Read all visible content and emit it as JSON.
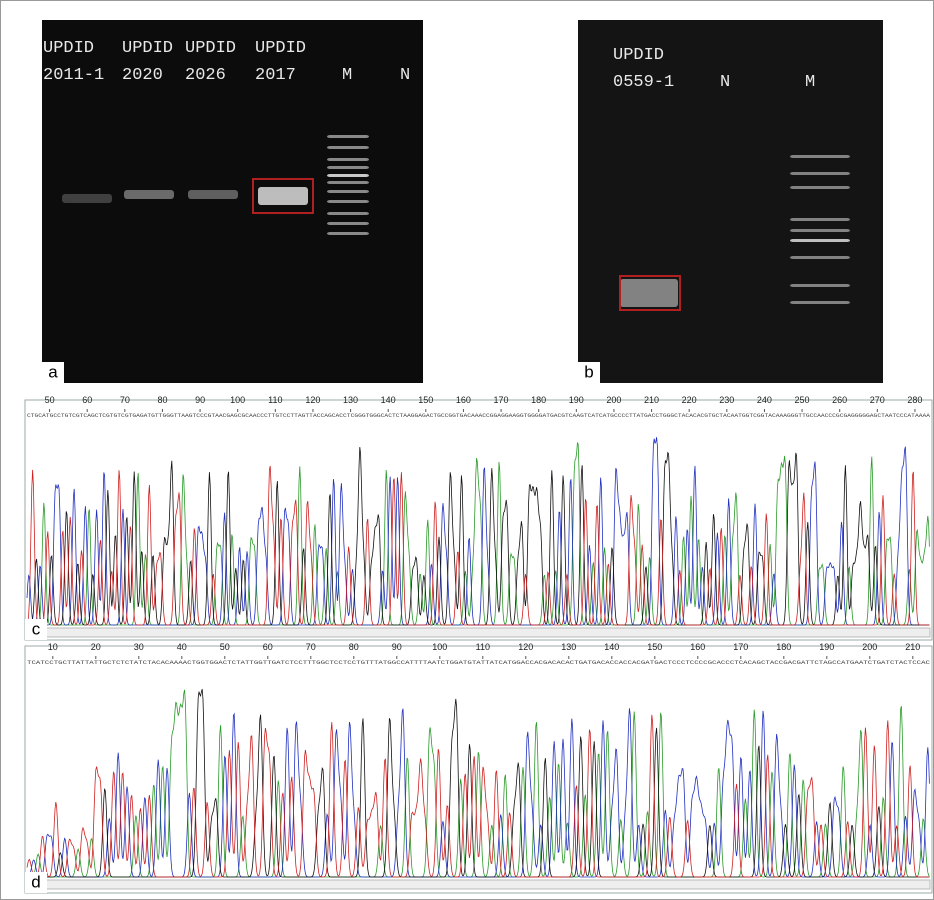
{
  "panels": [
    {
      "label": "a",
      "lanes": [
        [
          "UPDID",
          "2011-1"
        ],
        [
          "UPDID",
          "2020"
        ],
        [
          "UPDID",
          "2026"
        ],
        [
          "UPDID",
          "2017"
        ],
        [
          "M"
        ],
        [
          "N"
        ]
      ]
    },
    {
      "label": "b",
      "lanes": [
        [
          "UPDID",
          "0559-1"
        ],
        [
          "N"
        ],
        [
          "M"
        ]
      ]
    },
    {
      "label": "c",
      "ruler": [
        "50",
        "60",
        "70",
        "80",
        "90",
        "100",
        "110",
        "120",
        "130",
        "140",
        "150",
        "160",
        "170",
        "180",
        "190",
        "200",
        "210",
        "220",
        "230",
        "240",
        "250",
        "260",
        "270",
        "280"
      ],
      "sequence": "CTGCATGCCTGTCGTCAGCTCGTGTCGTGAGATGTTGGGTTAAGTCCCGTAACGAGCGCAACCCTTGTCCTTAGTTACCAGCACCTCGGGTGGGCACTCTAAGGAGACTGCCGGTGACAAACCGGAGGAAGGTGGGGATGACGTCAAGTCATCATGCCCCTTATGACCTGGGCTACACACGTGCTACAATGGTCGGTACAAAGGGTTGCCAACCCGCGAGGGGGAGCTAATCCCATAAAA"
    },
    {
      "label": "d",
      "ruler": [
        "10",
        "20",
        "30",
        "40",
        "50",
        "60",
        "70",
        "80",
        "90",
        "100",
        "110",
        "120",
        "130",
        "140",
        "150",
        "160",
        "170",
        "180",
        "190",
        "200",
        "210"
      ],
      "sequence": "TCATCCTGCTTATTATTGCTCTCTATCTACACAAAACTGGTGGACTCTATTGGTTGATCTCCTTTGGCTCCTCCTGTTTATGGCCATTTTAATCTGGATGTATTATCATGGACCACGACACACTGATGACACCACCACGATGACTCCCTCCCCGCACCCTCACAGCTACCGACGATTCTAGCCATGAATCTGATCTACTCCAC"
    }
  ]
}
